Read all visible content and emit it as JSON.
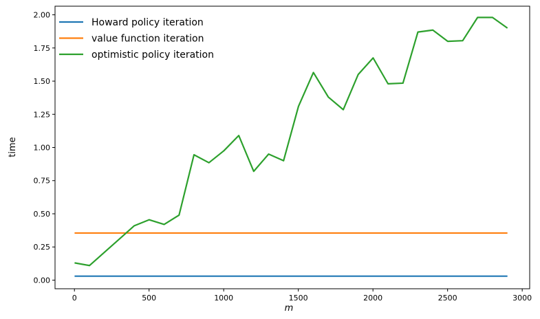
{
  "chart_data": {
    "type": "line",
    "xlabel": "m",
    "ylabel": "time",
    "xlim": [
      -130,
      3050
    ],
    "ylim": [
      -0.065,
      2.065
    ],
    "xticks": [
      0,
      500,
      1000,
      1500,
      2000,
      2500,
      3000
    ],
    "xtick_labels": [
      "0",
      "500",
      "1000",
      "1500",
      "2000",
      "2500",
      "3000"
    ],
    "yticks": [
      0.0,
      0.25,
      0.5,
      0.75,
      1.0,
      1.25,
      1.5,
      1.75,
      2.0
    ],
    "ytick_labels": [
      "0.00",
      "0.25",
      "0.50",
      "0.75",
      "1.00",
      "1.25",
      "1.50",
      "1.75",
      "2.00"
    ],
    "grid": false,
    "legend": "top-left",
    "series": [
      {
        "name": "Howard policy iteration",
        "color": "#1f77b4",
        "x": [
          1,
          2901
        ],
        "y": [
          0.03,
          0.03
        ]
      },
      {
        "name": "value function iteration",
        "color": "#ff7f0e",
        "x": [
          1,
          2901
        ],
        "y": [
          0.355,
          0.355
        ]
      },
      {
        "name": "optimistic policy iteration",
        "color": "#2ca02c",
        "x": [
          1,
          101,
          201,
          301,
          401,
          501,
          601,
          701,
          801,
          901,
          1001,
          1101,
          1201,
          1301,
          1401,
          1501,
          1601,
          1701,
          1801,
          1901,
          2001,
          2101,
          2201,
          2301,
          2401,
          2501,
          2601,
          2701,
          2801,
          2901
        ],
        "y": [
          0.13,
          0.11,
          0.21,
          0.31,
          0.41,
          0.455,
          0.42,
          0.49,
          0.945,
          0.885,
          0.975,
          1.09,
          0.82,
          0.95,
          0.9,
          1.31,
          1.565,
          1.38,
          1.285,
          1.55,
          1.675,
          1.48,
          1.485,
          1.87,
          1.885,
          1.8,
          1.805,
          1.98,
          1.98,
          1.9
        ]
      }
    ]
  }
}
